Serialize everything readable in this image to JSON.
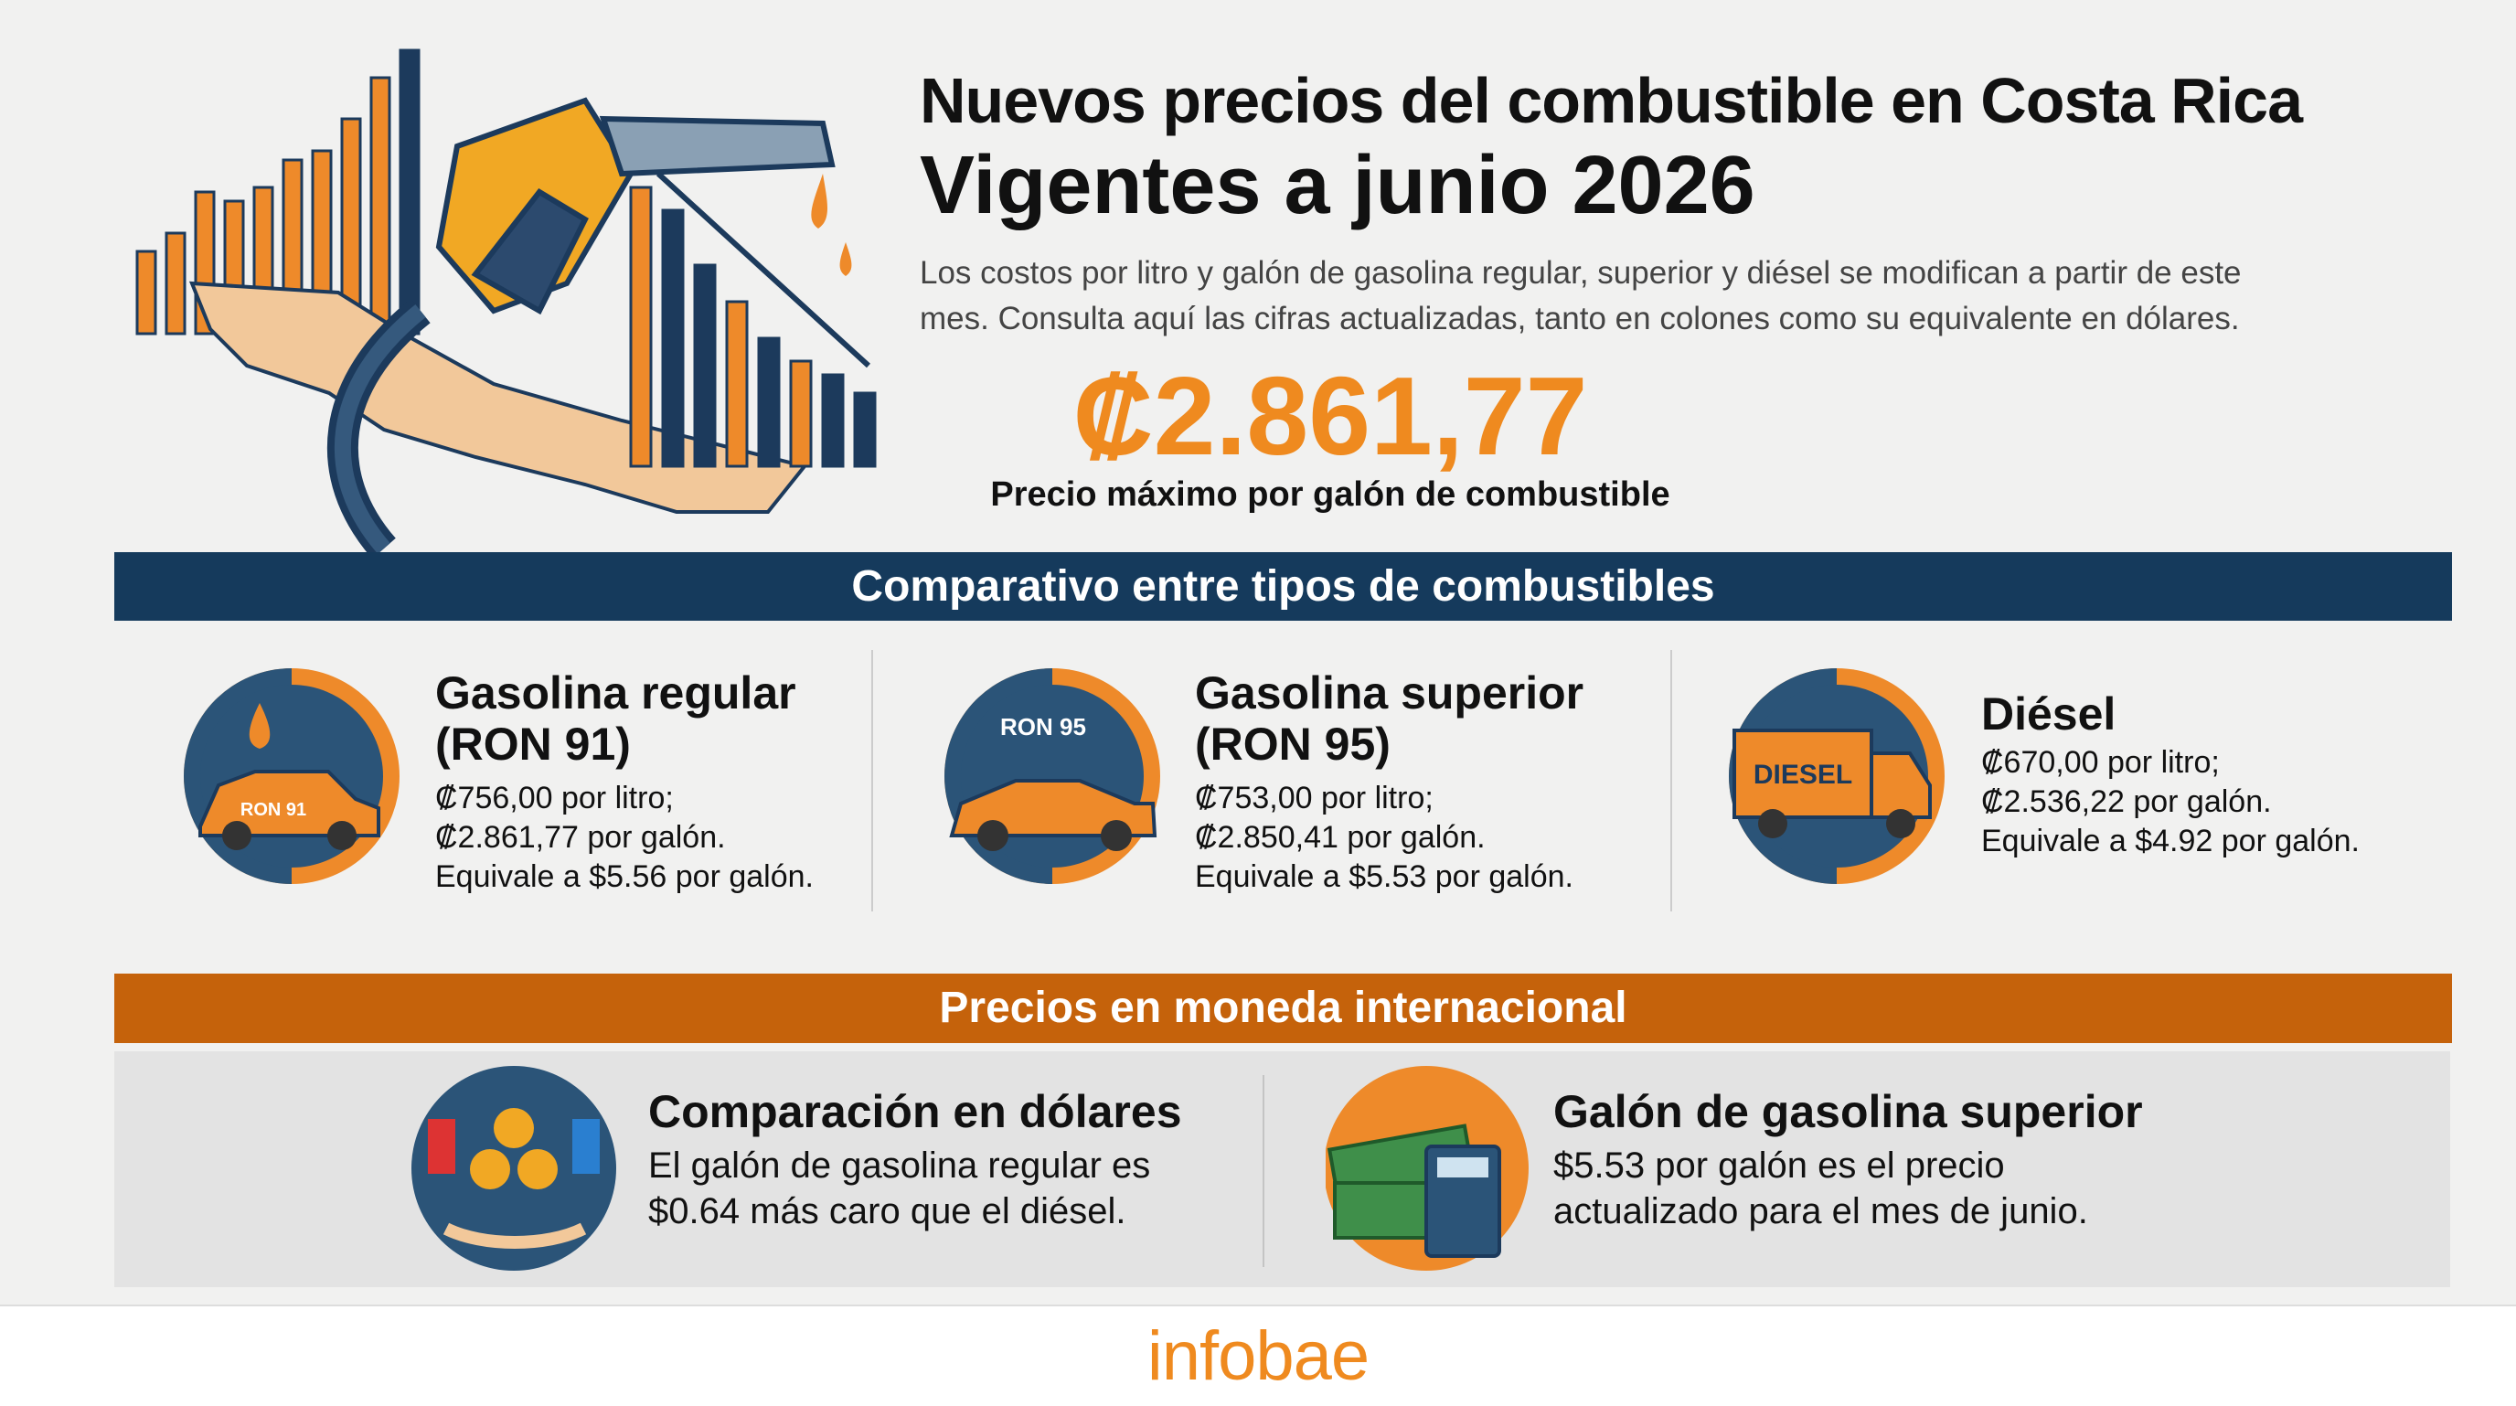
{
  "header": {
    "title": "Nuevos precios del combustible en Costa Rica",
    "subtitle": "Vigentes a junio 2026",
    "description": [
      "Los costos por litro y galón de gasolina regular, superior y diésel se modifican a partir de este",
      "mes. Consulta aquí las cifras actualizadas, tanto en colones como su equivalente en dólares."
    ]
  },
  "highlight": {
    "price": "₡2.861,77",
    "caption": "Precio máximo por galón de combustible"
  },
  "comparison": {
    "heading": "Comparativo entre tipos de combustibles",
    "items": [
      {
        "name": "Gasolina regular (RON 91)",
        "icon_label": "RON 91",
        "lines": [
          "₡756,00 por litro;",
          "₡2.861,77 por galón.",
          "Equivale a $5.56 por galón."
        ]
      },
      {
        "name": "Gasolina superior (RON 95)",
        "icon_label": "RON 95",
        "lines": [
          "₡753,00 por litro;",
          "₡2.850,41 por galón.",
          "Equivale a $5.53 por galón."
        ]
      },
      {
        "name": "Diésel",
        "icon_label": "DIESEL",
        "lines": [
          "₡670,00 por litro;",
          "₡2.536,22 por galón.",
          "Equivale a $4.92 por galón."
        ]
      }
    ]
  },
  "international": {
    "heading": "Precios en moneda internacional",
    "items": [
      {
        "title": "Comparación en dólares",
        "lines": [
          "El galón de gasolina regular es",
          "$0.64 más caro que el diésel."
        ]
      },
      {
        "title": "Galón de gasolina superior",
        "lines": [
          "$5.53 por galón es el precio",
          "actualizado para el mes de junio."
        ]
      }
    ]
  },
  "footer": {
    "brand": "infobae"
  }
}
